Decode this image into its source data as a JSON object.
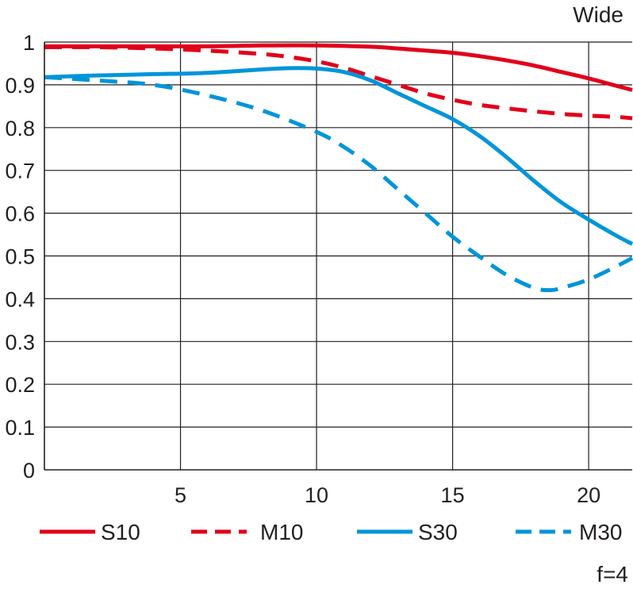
{
  "chart_data": {
    "type": "line",
    "title": "",
    "xlabel": "",
    "ylabel": "",
    "corner_label": "Wide",
    "footnote": "f=4",
    "xlim": [
      0,
      21.6
    ],
    "ylim": [
      0,
      1
    ],
    "x_ticks": [
      "5",
      "10",
      "15",
      "20"
    ],
    "x_tick_values": [
      5,
      10,
      15,
      20
    ],
    "y_ticks": [
      "0",
      "0.1",
      "0.2",
      "0.3",
      "0.4",
      "0.5",
      "0.6",
      "0.7",
      "0.8",
      "0.9",
      "1"
    ],
    "y_tick_values": [
      0,
      0.1,
      0.2,
      0.3,
      0.4,
      0.5,
      0.6,
      0.7,
      0.8,
      0.9,
      1
    ],
    "grid": true,
    "legend_position": "bottom",
    "series": [
      {
        "name": "S10",
        "color": "#e2001a",
        "dash": "solid",
        "x": [
          0,
          2,
          4,
          6,
          8,
          10,
          12,
          13,
          14,
          15,
          16,
          17,
          18,
          19,
          20,
          21,
          21.6
        ],
        "y": [
          0.99,
          0.99,
          0.99,
          0.99,
          0.992,
          0.992,
          0.989,
          0.985,
          0.98,
          0.975,
          0.967,
          0.957,
          0.945,
          0.93,
          0.915,
          0.898,
          0.888
        ]
      },
      {
        "name": "M10",
        "color": "#e2001a",
        "dash": "dashed",
        "x": [
          0,
          2,
          4,
          6,
          8,
          9,
          10,
          11,
          12,
          13,
          14,
          15,
          16,
          17,
          18,
          19,
          20,
          21,
          21.6
        ],
        "y": [
          0.988,
          0.988,
          0.985,
          0.98,
          0.972,
          0.965,
          0.955,
          0.94,
          0.92,
          0.9,
          0.88,
          0.865,
          0.853,
          0.845,
          0.838,
          0.832,
          0.828,
          0.825,
          0.822
        ]
      },
      {
        "name": "S30",
        "color": "#0095d9",
        "dash": "solid",
        "x": [
          0,
          2,
          4,
          6,
          8,
          9,
          10,
          11,
          12,
          13,
          14,
          15,
          16,
          17,
          18,
          19,
          20,
          21,
          21.6
        ],
        "y": [
          0.918,
          0.922,
          0.925,
          0.928,
          0.936,
          0.939,
          0.938,
          0.93,
          0.91,
          0.88,
          0.85,
          0.82,
          0.78,
          0.73,
          0.675,
          0.625,
          0.585,
          0.548,
          0.528
        ]
      },
      {
        "name": "M30",
        "color": "#0095d9",
        "dash": "dashed",
        "x": [
          0,
          2,
          4,
          6,
          8,
          10,
          11,
          12,
          13,
          14,
          15,
          16,
          17,
          18,
          18.6,
          19,
          20,
          21,
          21.6
        ],
        "y": [
          0.918,
          0.91,
          0.9,
          0.875,
          0.84,
          0.79,
          0.755,
          0.71,
          0.655,
          0.6,
          0.545,
          0.498,
          0.455,
          0.425,
          0.42,
          0.425,
          0.445,
          0.475,
          0.495
        ]
      }
    ]
  }
}
